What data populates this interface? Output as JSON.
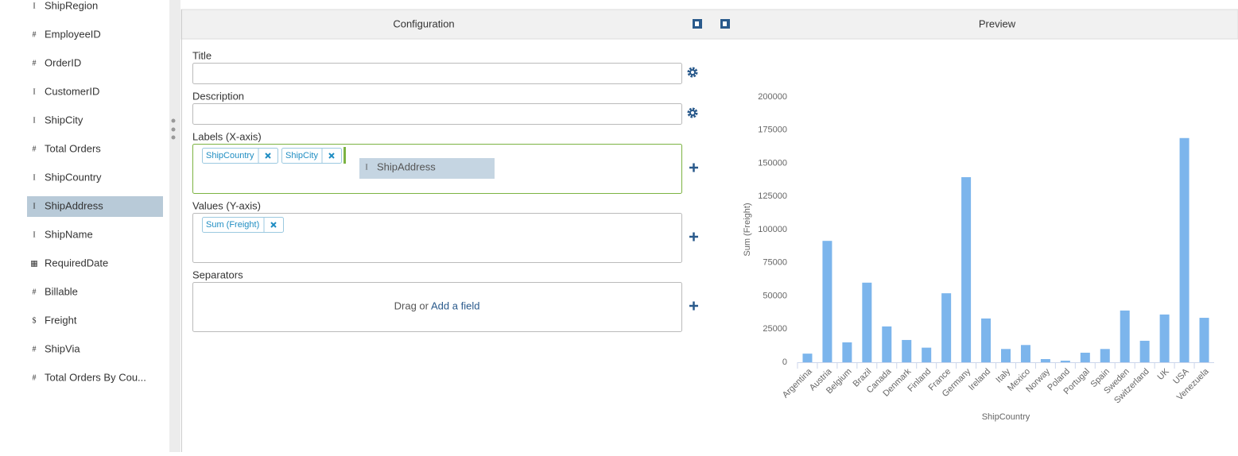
{
  "sidebar": {
    "fields": [
      {
        "icon": "I",
        "name": "ShipRegion"
      },
      {
        "icon": "#",
        "name": "EmployeeID"
      },
      {
        "icon": "#",
        "name": "OrderID"
      },
      {
        "icon": "I",
        "name": "CustomerID"
      },
      {
        "icon": "I",
        "name": "ShipCity"
      },
      {
        "icon": "#",
        "name": "Total Orders"
      },
      {
        "icon": "I",
        "name": "ShipCountry"
      },
      {
        "icon": "I",
        "name": "ShipAddress"
      },
      {
        "icon": "I",
        "name": "ShipName"
      },
      {
        "icon": "▦",
        "name": "RequiredDate"
      },
      {
        "icon": "#",
        "name": "Billable"
      },
      {
        "icon": "$",
        "name": "Freight"
      },
      {
        "icon": "#",
        "name": "ShipVia"
      },
      {
        "icon": "#",
        "name": "Total Orders By Cou..."
      }
    ],
    "selected": 7
  },
  "configuration": {
    "heading": "Configuration",
    "title_label": "Title",
    "description_label": "Description",
    "labels_label": "Labels (X-axis)",
    "labels_chips": [
      "ShipCountry",
      "ShipCity"
    ],
    "drag_item": {
      "icon": "I",
      "name": "ShipAddress"
    },
    "values_label": "Values (Y-axis)",
    "values_chips": [
      "Sum (Freight)"
    ],
    "separators_label": "Separators",
    "separators_hint": "Drag or",
    "separators_link": "Add a field"
  },
  "preview": {
    "heading": "Preview",
    "chart_data": {
      "type": "bar",
      "x_label": "ShipCountry",
      "y_label": "Sum (Freight)",
      "categories": [
        "Argentina",
        "Austria",
        "Belgium",
        "Brazil",
        "Canada",
        "Denmark",
        "Finland",
        "France",
        "Germany",
        "Ireland",
        "Italy",
        "Mexico",
        "Norway",
        "Poland",
        "Portugal",
        "Spain",
        "Sweden",
        "Switzerland",
        "UK",
        "USA",
        "Venezuela"
      ],
      "values": [
        6500,
        91500,
        15000,
        60000,
        27000,
        16800,
        11000,
        52000,
        139500,
        33000,
        10000,
        13000,
        2400,
        1200,
        7200,
        10000,
        39000,
        16200,
        36000,
        169000,
        33500
      ],
      "color": "#7cb5ec",
      "ylim": [
        0,
        200000
      ],
      "yticks": [
        0,
        25000,
        50000,
        75000,
        100000,
        125000,
        150000,
        175000,
        200000
      ],
      "grid": false
    }
  }
}
